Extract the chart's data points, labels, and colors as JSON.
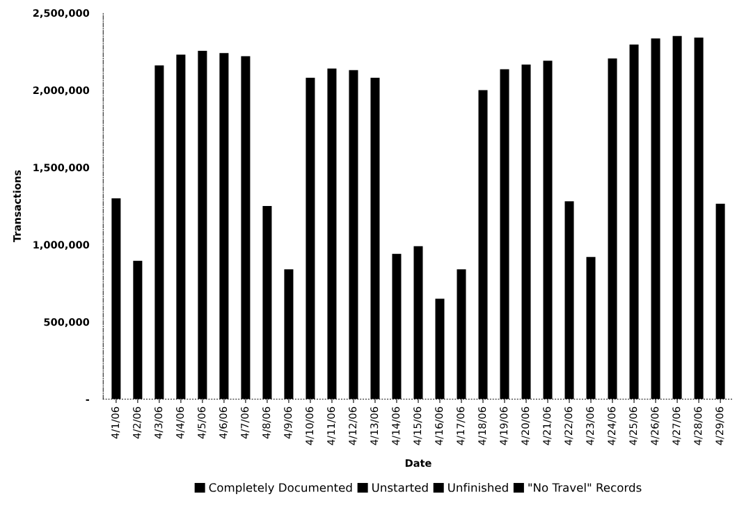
{
  "chart_data": {
    "type": "bar",
    "stacked": true,
    "xlabel": "Date",
    "ylabel": "Transactions",
    "categories": [
      "4/1/06",
      "4/2/06",
      "4/3/06",
      "4/4/06",
      "4/5/06",
      "4/6/06",
      "4/7/06",
      "4/8/06",
      "4/9/06",
      "4/10/06",
      "4/11/06",
      "4/12/06",
      "4/13/06",
      "4/14/06",
      "4/15/06",
      "4/16/06",
      "4/17/06",
      "4/18/06",
      "4/19/06",
      "4/20/06",
      "4/21/06",
      "4/22/06",
      "4/23/06",
      "4/24/06",
      "4/25/06",
      "4/26/06",
      "4/27/06",
      "4/28/06",
      "4/29/06"
    ],
    "series": [
      {
        "name": "Completely Documented",
        "color": "#000000",
        "values": [
          1300000,
          895000,
          2160000,
          2230000,
          2255000,
          2240000,
          2220000,
          1250000,
          840000,
          2080000,
          2140000,
          2130000,
          2080000,
          940000,
          990000,
          650000,
          840000,
          2000000,
          2135000,
          2165000,
          2190000,
          1280000,
          920000,
          2205000,
          2295000,
          2335000,
          2350000,
          2340000,
          1265000
        ]
      },
      {
        "name": "Unstarted",
        "color": "#000000",
        "values": [
          null,
          null,
          null,
          null,
          null,
          null,
          null,
          null,
          null,
          null,
          null,
          null,
          null,
          null,
          null,
          null,
          null,
          null,
          null,
          null,
          null,
          null,
          null,
          null,
          null,
          null,
          null,
          null,
          null
        ]
      },
      {
        "name": "Unfinished",
        "color": "#000000",
        "values": [
          null,
          null,
          null,
          null,
          null,
          null,
          null,
          null,
          null,
          null,
          null,
          null,
          null,
          null,
          null,
          null,
          null,
          null,
          null,
          null,
          null,
          null,
          null,
          null,
          null,
          null,
          null,
          null,
          null
        ]
      },
      {
        "name": "\"No Travel\" Records",
        "color": "#000000",
        "values": [
          null,
          null,
          null,
          null,
          null,
          null,
          null,
          null,
          null,
          null,
          null,
          null,
          null,
          null,
          null,
          null,
          null,
          null,
          null,
          null,
          null,
          null,
          null,
          null,
          null,
          null,
          null,
          null,
          null
        ]
      }
    ],
    "ylim": [
      0,
      2500000
    ],
    "yticks": [
      {
        "value": 0,
        "label": "-"
      },
      {
        "value": 500000,
        "label": "500,000"
      },
      {
        "value": 1000000,
        "label": "1,000,000"
      },
      {
        "value": 1500000,
        "label": "1,500,000"
      },
      {
        "value": 2000000,
        "label": "2,000,000"
      },
      {
        "value": 2500000,
        "label": "2,500,000"
      }
    ],
    "grid": false,
    "legend": "bottom"
  }
}
